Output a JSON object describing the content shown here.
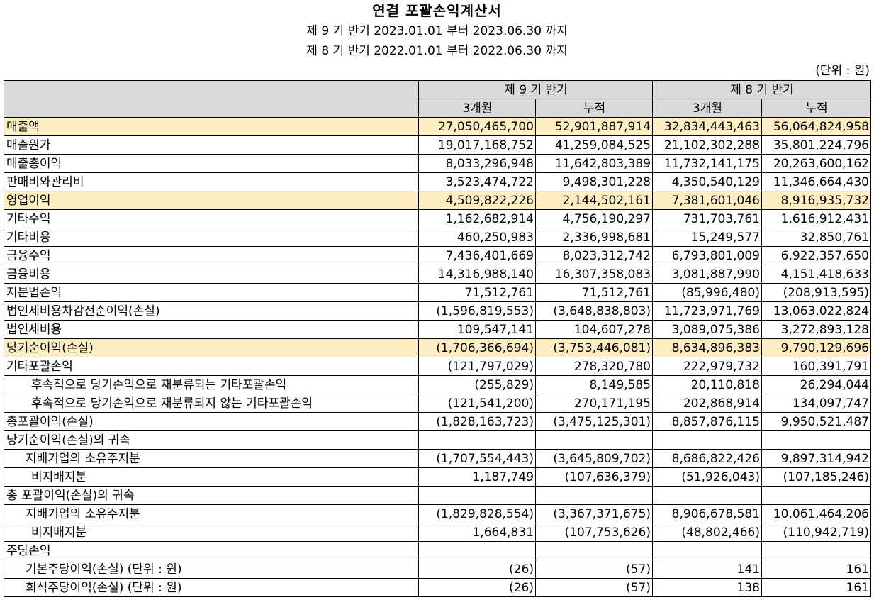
{
  "title": "연결 포괄손익계산서",
  "period_current": "제 9 기 반기 2023.01.01 부터 2023.06.30 까지",
  "period_prior": "제 8 기 반기 2022.01.01 부터 2022.06.30 까지",
  "unit": "(단위 : 원)",
  "columns": {
    "group1": "제 9 기 반기",
    "group2": "제 8 기 반기",
    "sub": [
      "3개월",
      "누적",
      "3개월",
      "누적"
    ]
  },
  "rows": [
    {
      "label": "매출액",
      "values": [
        "27,050,465,700",
        "52,901,887,914",
        "32,834,443,463",
        "56,064,824,958"
      ]
    },
    {
      "label": "매출원가",
      "values": [
        "19,017,168,752",
        "41,259,084,525",
        "21,102,302,288",
        "35,801,224,796"
      ]
    },
    {
      "label": "매출총이익",
      "values": [
        "8,033,296,948",
        "11,642,803,389",
        "11,732,141,175",
        "20,263,600,162"
      ]
    },
    {
      "label": "판매비와관리비",
      "values": [
        "3,523,474,722",
        "9,498,301,228",
        "4,350,540,129",
        "11,346,664,430"
      ]
    },
    {
      "label": "영업이익",
      "values": [
        "4,509,822,226",
        "2,144,502,161",
        "7,381,601,046",
        "8,916,935,732"
      ]
    },
    {
      "label": "기타수익",
      "values": [
        "1,162,682,914",
        "4,756,190,297",
        "731,703,761",
        "1,616,912,431"
      ]
    },
    {
      "label": "기타비용",
      "values": [
        "460,250,983",
        "2,336,998,681",
        "15,249,577",
        "32,850,761"
      ]
    },
    {
      "label": "금융수익",
      "values": [
        "7,436,401,669",
        "8,023,312,742",
        "6,793,801,009",
        "6,922,357,650"
      ]
    },
    {
      "label": "금융비용",
      "values": [
        "14,316,988,140",
        "16,307,358,083",
        "3,081,887,990",
        "4,151,418,633"
      ]
    },
    {
      "label": "지분법손익",
      "values": [
        "71,512,761",
        "71,512,761",
        "(85,996,480)",
        "(208,913,595)"
      ]
    },
    {
      "label": "법인세비용차감전순이익(손실)",
      "values": [
        "(1,596,819,553)",
        "(3,648,838,803)",
        "11,723,971,769",
        "13,063,022,824"
      ]
    },
    {
      "label": "법인세비용",
      "values": [
        "109,547,141",
        "104,607,278",
        "3,089,075,386",
        "3,272,893,128"
      ]
    },
    {
      "label": "당기순이익(손실)",
      "values": [
        "(1,706,366,694)",
        "(3,753,446,081)",
        "8,634,896,383",
        "9,790,129,696"
      ]
    },
    {
      "label": "기타포괄손익",
      "values": [
        "(121,797,029)",
        "278,320,780",
        "222,979,732",
        "160,391,791"
      ]
    },
    {
      "label": "후속적으로 당기손익으로 재분류되는 기타포괄손익",
      "values": [
        "(255,829)",
        "8,149,585",
        "20,110,818",
        "26,294,044"
      ]
    },
    {
      "label": "후속적으로 당기손익으로 재분류되지 않는 기타포괄손익",
      "values": [
        "(121,541,200)",
        "270,171,195",
        "202,868,914",
        "134,097,747"
      ]
    },
    {
      "label": "총포괄이익(손실)",
      "values": [
        "(1,828,163,723)",
        "(3,475,125,301)",
        "8,857,876,115",
        "9,950,521,487"
      ]
    },
    {
      "label": "당기순이익(손실)의 귀속",
      "values": [
        "",
        "",
        "",
        ""
      ]
    },
    {
      "label": "지배기업의 소유주지분",
      "values": [
        "(1,707,554,443)",
        "(3,645,809,702)",
        "8,686,822,426",
        "9,897,314,942"
      ]
    },
    {
      "label": "비지배지분",
      "values": [
        "1,187,749",
        "(107,636,379)",
        "(51,926,043)",
        "(107,185,246)"
      ]
    },
    {
      "label": "총 포괄이익(손실)의 귀속",
      "values": [
        "",
        "",
        "",
        ""
      ]
    },
    {
      "label": "지배기업의 소유주지분",
      "values": [
        "(1,829,828,554)",
        "(3,367,371,675)",
        "8,906,678,581",
        "10,061,464,206"
      ]
    },
    {
      "label": "비지배지분",
      "values": [
        "1,664,831",
        "(107,753,626)",
        "(48,802,466)",
        "(110,942,719)"
      ]
    },
    {
      "label": "주당손익",
      "values": [
        "",
        "",
        "",
        ""
      ]
    },
    {
      "label": "기본주당이익(손실) (단위 : 원)",
      "values": [
        "(26)",
        "(57)",
        "141",
        "161"
      ]
    },
    {
      "label": "희석주당이익(손실) (단위 : 원)",
      "values": [
        "(26)",
        "(57)",
        "138",
        "161"
      ]
    }
  ]
}
